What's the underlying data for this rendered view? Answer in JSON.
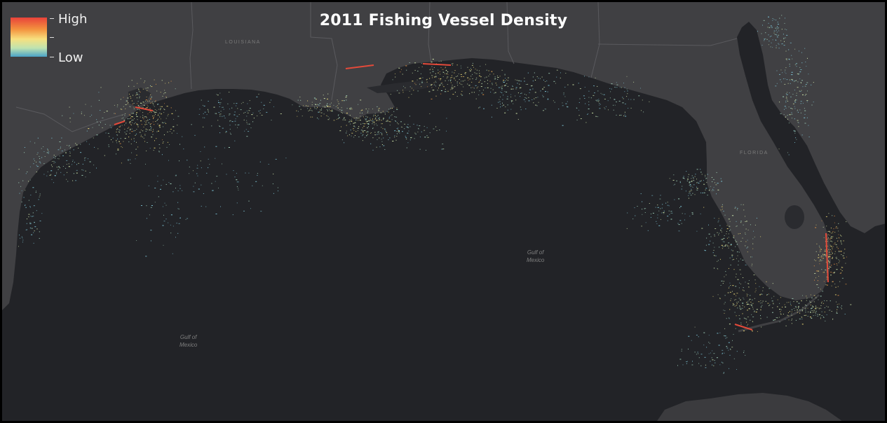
{
  "map": {
    "title": "2011 Fishing Vessel Density",
    "legend": {
      "high_label": "High",
      "low_label": "Low",
      "colors": [
        "#e8423a",
        "#f3923e",
        "#f7e07f",
        "#bfe3b0",
        "#4aa3c8"
      ]
    },
    "place_labels": {
      "louisiana": "LOUISIANA",
      "florida": "FLORIDA",
      "gulf_center": {
        "line1": "Gulf of",
        "line2": "Mexico"
      },
      "gulf_west": {
        "line1": "Gulf of",
        "line2": "Mexico"
      }
    },
    "colors": {
      "water": "#222327",
      "land": "#404043",
      "boundary": "#5a5a5e"
    }
  }
}
